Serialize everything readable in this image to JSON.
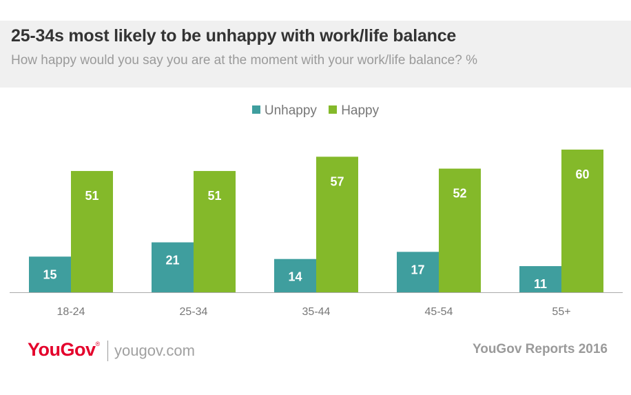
{
  "header": {
    "title": "25-34s most likely to be unhappy with work/life balance",
    "subtitle": "How happy would you say you are at the moment with your work/life balance? %"
  },
  "colors": {
    "unhappy": "#3f9e9e",
    "happy": "#84b92a",
    "header_bg": "#f0f0f0",
    "brand": "#e4002b"
  },
  "chart_data": {
    "type": "bar",
    "categories": [
      "18-24",
      "25-34",
      "35-44",
      "45-54",
      "55+"
    ],
    "series": [
      {
        "name": "Unhappy",
        "values": [
          15,
          21,
          14,
          17,
          11
        ]
      },
      {
        "name": "Happy",
        "values": [
          51,
          51,
          57,
          52,
          60
        ]
      }
    ],
    "ylim": [
      0,
      60
    ],
    "legend": "top-center",
    "grid": false
  },
  "footer": {
    "logo_text": "YouGov",
    "logo_mark": "®",
    "site": "yougov.com",
    "report": "YouGov Reports 2016"
  }
}
